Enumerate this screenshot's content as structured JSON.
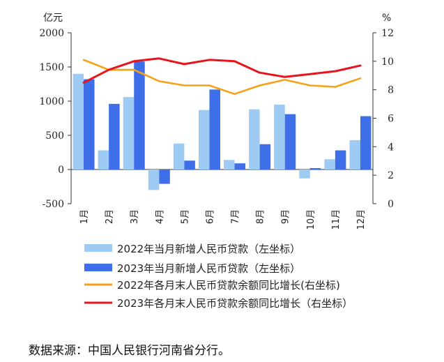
{
  "chart_data": {
    "type": "bar",
    "categories": [
      "1月",
      "2月",
      "3月",
      "4月",
      "5月",
      "6月",
      "7月",
      "8月",
      "9月",
      "10月",
      "11月",
      "12月"
    ],
    "left_axis": {
      "unit": "亿元",
      "min": -500,
      "max": 2000,
      "ticks": [
        "2000",
        "1500",
        "1000",
        "500",
        "0",
        "-500"
      ]
    },
    "right_axis": {
      "unit": "%",
      "min": 0,
      "max": 12,
      "ticks": [
        "12",
        "10",
        "8",
        "6",
        "4",
        "2",
        "0"
      ]
    },
    "series": [
      {
        "name": "2022年当月新增人民币贷款（左坐标）",
        "kind": "bar",
        "axis": "left",
        "color": "#9DCBF3",
        "values": [
          1400,
          280,
          1060,
          -300,
          380,
          870,
          140,
          880,
          950,
          -130,
          150,
          430
        ]
      },
      {
        "name": "2023年当月新增人民币贷款（左坐标）",
        "kind": "bar",
        "axis": "left",
        "color": "#3F6FE8",
        "values": [
          1320,
          960,
          1580,
          -210,
          130,
          1170,
          90,
          370,
          810,
          20,
          280,
          780
        ]
      },
      {
        "name": "2022年各月末人民币贷款余额同比增长(右坐标)",
        "kind": "line",
        "axis": "right",
        "color": "#F5A218",
        "values": [
          10.1,
          9.4,
          9.4,
          8.6,
          8.3,
          8.3,
          7.7,
          8.3,
          8.7,
          8.3,
          8.2,
          8.8
        ]
      },
      {
        "name": "2023年各月末人民币贷款余额同比增长（右坐标）",
        "kind": "line",
        "axis": "right",
        "color": "#E8141C",
        "values": [
          8.5,
          9.4,
          10.0,
          10.2,
          9.8,
          10.1,
          10.0,
          9.2,
          8.9,
          9.1,
          9.3,
          9.7
        ]
      }
    ]
  },
  "source_note": "数据来源：中国人民银行河南省分行。"
}
